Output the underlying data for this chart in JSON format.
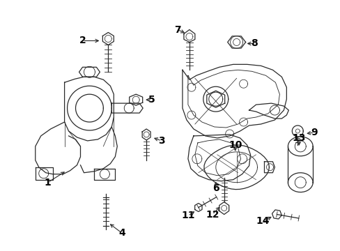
{
  "background_color": "#ffffff",
  "line_color": "#2a2a2a",
  "text_color": "#000000",
  "fig_width": 4.89,
  "fig_height": 3.6,
  "dpi": 100
}
